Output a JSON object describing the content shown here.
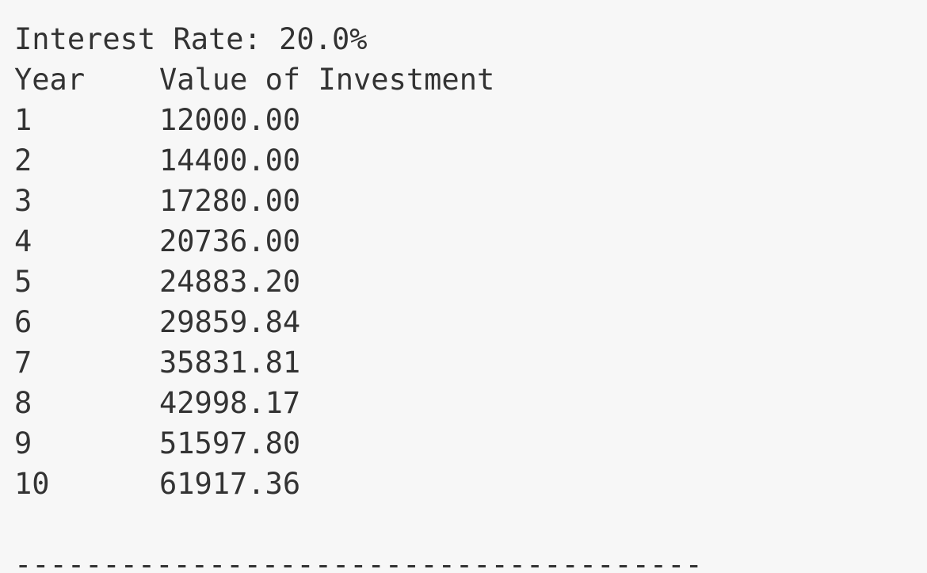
{
  "console": {
    "heading": "Interest Rate: 20.0%",
    "columns": {
      "year": "Year",
      "value": "Value of Investment"
    },
    "rows": [
      {
        "year": "1",
        "value": "12000.00"
      },
      {
        "year": "2",
        "value": "14400.00"
      },
      {
        "year": "3",
        "value": "17280.00"
      },
      {
        "year": "4",
        "value": "20736.00"
      },
      {
        "year": "5",
        "value": "24883.20"
      },
      {
        "year": "6",
        "value": "29859.84"
      },
      {
        "year": "7",
        "value": "35831.81"
      },
      {
        "year": "8",
        "value": "42998.17"
      },
      {
        "year": "9",
        "value": "51597.80"
      },
      {
        "year": "10",
        "value": "61917.36"
      }
    ],
    "separator": "---------------------------------------"
  }
}
